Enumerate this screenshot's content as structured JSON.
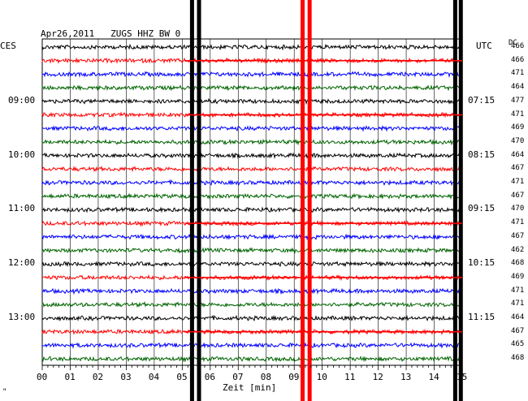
{
  "title": "Apr26,2011   ZUGS HHZ BW 0",
  "left_axis_unit": "CES",
  "right_axis_unit": "UTC",
  "right_column_label": "DC",
  "xlabel": "Zeit [min]",
  "corner_mark": "\"",
  "chart_data": {
    "type": "line",
    "title": "Apr26,2011   ZUGS HHZ BW 0",
    "xlabel": "Zeit [min]",
    "xlim": [
      0,
      15
    ],
    "x_ticks": [
      "00",
      "01",
      "02",
      "03",
      "04",
      "05",
      "06",
      "07",
      "08",
      "09",
      "10",
      "11",
      "12",
      "13",
      "14",
      "15"
    ],
    "left_time_labels": [
      "09:00",
      "10:00",
      "11:00",
      "12:00",
      "13:00"
    ],
    "right_time_labels": [
      "07:15",
      "08:15",
      "09:15",
      "10:15",
      "11:15"
    ],
    "label_trace_indices": [
      4,
      8,
      12,
      16,
      20
    ],
    "trace_colors": [
      "#000000",
      "#ff0000",
      "#0000ff",
      "#006400"
    ],
    "dc_offsets": [
      466,
      466,
      471,
      464,
      477,
      471,
      469,
      470,
      464,
      467,
      471,
      467,
      470,
      471,
      467,
      462,
      468,
      469,
      471,
      471,
      464,
      467,
      465,
      468
    ],
    "grid": true,
    "events": [
      {
        "x_min": 5.35,
        "color": "#000000",
        "amplitude": "saturated"
      },
      {
        "x_min": 5.6,
        "color": "#000000",
        "amplitude": "saturated"
      },
      {
        "x_min": 9.3,
        "color": "#ff0000",
        "amplitude": "saturated"
      },
      {
        "x_min": 9.55,
        "color": "#ff0000",
        "amplitude": "saturated"
      },
      {
        "x_min": 14.75,
        "color": "#000000",
        "amplitude": "saturated"
      },
      {
        "x_min": 14.95,
        "color": "#000000",
        "amplitude": "saturated"
      }
    ]
  }
}
